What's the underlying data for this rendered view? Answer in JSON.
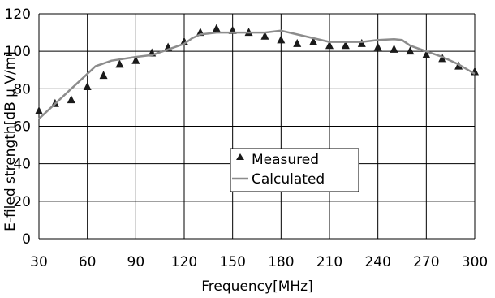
{
  "chart_data": {
    "type": "scatter+line",
    "xlabel": "Frequency[MHz]",
    "ylabel": "E-filed strength[dB μ V/m]",
    "xlim": [
      30,
      300
    ],
    "ylim": [
      0,
      120
    ],
    "x_ticks": [
      30,
      60,
      90,
      120,
      150,
      180,
      210,
      240,
      270,
      300
    ],
    "y_ticks": [
      0,
      20,
      40,
      60,
      80,
      100,
      120
    ],
    "grid": true,
    "legend": {
      "placement": "center",
      "entries": [
        "Measured",
        "Calculated"
      ]
    },
    "series": [
      {
        "name": "Measured",
        "marker": "triangle",
        "color": "#1a1a1a",
        "points": [
          [
            30,
            68
          ],
          [
            40,
            72
          ],
          [
            50,
            74
          ],
          [
            60,
            81
          ],
          [
            70,
            87
          ],
          [
            80,
            93
          ],
          [
            90,
            95
          ],
          [
            100,
            99
          ],
          [
            110,
            102
          ],
          [
            120,
            105
          ],
          [
            130,
            110
          ],
          [
            140,
            112
          ],
          [
            150,
            111
          ],
          [
            160,
            110
          ],
          [
            170,
            108
          ],
          [
            180,
            106
          ],
          [
            190,
            104
          ],
          [
            200,
            105
          ],
          [
            210,
            103
          ],
          [
            220,
            103
          ],
          [
            230,
            104
          ],
          [
            240,
            102
          ],
          [
            250,
            101
          ],
          [
            260,
            100
          ],
          [
            270,
            98
          ],
          [
            280,
            96
          ],
          [
            290,
            92
          ],
          [
            300,
            89
          ]
        ]
      },
      {
        "name": "Calculated",
        "marker": "line",
        "color": "#8c8c8c",
        "points": [
          [
            30,
            64
          ],
          [
            40,
            72
          ],
          [
            50,
            80
          ],
          [
            60,
            88
          ],
          [
            65,
            92
          ],
          [
            75,
            95
          ],
          [
            90,
            97
          ],
          [
            100,
            98
          ],
          [
            110,
            101
          ],
          [
            120,
            104
          ],
          [
            125,
            107
          ],
          [
            130,
            109
          ],
          [
            140,
            110
          ],
          [
            150,
            110
          ],
          [
            160,
            110
          ],
          [
            170,
            110
          ],
          [
            180,
            111
          ],
          [
            190,
            109
          ],
          [
            200,
            107
          ],
          [
            210,
            105
          ],
          [
            220,
            105
          ],
          [
            230,
            105
          ],
          [
            240,
            106
          ],
          [
            250,
            106.5
          ],
          [
            255,
            106
          ],
          [
            260,
            103
          ],
          [
            270,
            100
          ],
          [
            280,
            97
          ],
          [
            290,
            93
          ],
          [
            300,
            88
          ]
        ]
      }
    ]
  }
}
